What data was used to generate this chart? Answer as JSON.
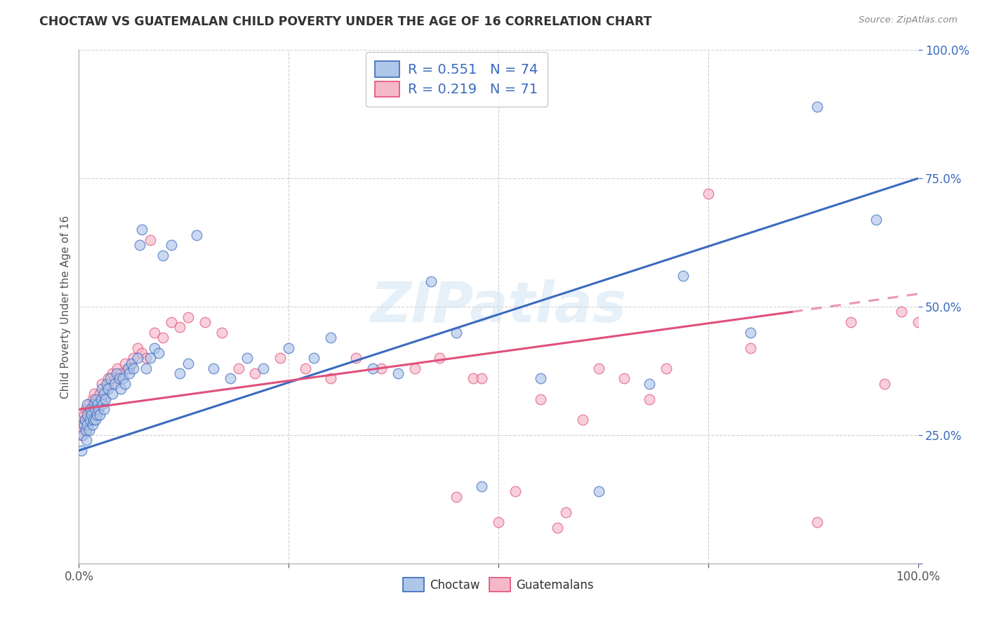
{
  "title": "CHOCTAW VS GUATEMALAN CHILD POVERTY UNDER THE AGE OF 16 CORRELATION CHART",
  "source": "Source: ZipAtlas.com",
  "ylabel": "Child Poverty Under the Age of 16",
  "choctaw_R": 0.551,
  "choctaw_N": 74,
  "guatemalan_R": 0.219,
  "guatemalan_N": 71,
  "choctaw_color": "#aec6e8",
  "guatemalan_color": "#f5b8c8",
  "choctaw_line_color": "#3b6abf",
  "guatemalan_line_color": "#e0507a",
  "watermark": "ZIPatlas",
  "xlim": [
    0.0,
    1.0
  ],
  "ylim": [
    0.0,
    1.0
  ],
  "choctaw_x": [
    0.003,
    0.005,
    0.006,
    0.007,
    0.008,
    0.009,
    0.01,
    0.01,
    0.01,
    0.012,
    0.013,
    0.014,
    0.015,
    0.016,
    0.017,
    0.018,
    0.019,
    0.02,
    0.02,
    0.021,
    0.022,
    0.023,
    0.025,
    0.026,
    0.027,
    0.028,
    0.03,
    0.03,
    0.031,
    0.033,
    0.035,
    0.037,
    0.04,
    0.042,
    0.045,
    0.048,
    0.05,
    0.052,
    0.055,
    0.058,
    0.06,
    0.062,
    0.065,
    0.07,
    0.072,
    0.075,
    0.08,
    0.085,
    0.09,
    0.095,
    0.1,
    0.11,
    0.12,
    0.13,
    0.14,
    0.16,
    0.18,
    0.2,
    0.22,
    0.25,
    0.28,
    0.3,
    0.35,
    0.38,
    0.42,
    0.45,
    0.48,
    0.55,
    0.62,
    0.68,
    0.72,
    0.8,
    0.88,
    0.95
  ],
  "choctaw_y": [
    0.22,
    0.25,
    0.27,
    0.28,
    0.26,
    0.24,
    0.27,
    0.29,
    0.31,
    0.26,
    0.28,
    0.3,
    0.29,
    0.27,
    0.28,
    0.31,
    0.3,
    0.28,
    0.32,
    0.29,
    0.31,
    0.3,
    0.29,
    0.32,
    0.34,
    0.31,
    0.3,
    0.33,
    0.32,
    0.35,
    0.34,
    0.36,
    0.33,
    0.35,
    0.37,
    0.36,
    0.34,
    0.36,
    0.35,
    0.38,
    0.37,
    0.39,
    0.38,
    0.4,
    0.62,
    0.65,
    0.38,
    0.4,
    0.42,
    0.41,
    0.6,
    0.62,
    0.37,
    0.39,
    0.64,
    0.38,
    0.36,
    0.4,
    0.38,
    0.42,
    0.4,
    0.44,
    0.38,
    0.37,
    0.55,
    0.45,
    0.15,
    0.36,
    0.14,
    0.35,
    0.56,
    0.45,
    0.89,
    0.67
  ],
  "guatemalan_x": [
    0.003,
    0.005,
    0.006,
    0.007,
    0.008,
    0.009,
    0.01,
    0.011,
    0.012,
    0.013,
    0.015,
    0.016,
    0.017,
    0.018,
    0.02,
    0.021,
    0.022,
    0.023,
    0.025,
    0.027,
    0.03,
    0.032,
    0.035,
    0.038,
    0.04,
    0.043,
    0.046,
    0.05,
    0.055,
    0.06,
    0.065,
    0.07,
    0.075,
    0.08,
    0.085,
    0.09,
    0.1,
    0.11,
    0.12,
    0.13,
    0.15,
    0.17,
    0.19,
    0.21,
    0.24,
    0.27,
    0.3,
    0.33,
    0.36,
    0.4,
    0.43,
    0.47,
    0.55,
    0.6,
    0.68,
    0.7,
    0.75,
    0.8,
    0.88,
    0.92,
    0.96,
    0.98,
    1.0,
    0.5,
    0.57,
    0.45,
    0.48,
    0.52,
    0.58,
    0.62,
    0.65
  ],
  "guatemalan_y": [
    0.25,
    0.27,
    0.29,
    0.28,
    0.3,
    0.26,
    0.28,
    0.3,
    0.31,
    0.29,
    0.3,
    0.32,
    0.31,
    0.33,
    0.29,
    0.31,
    0.3,
    0.32,
    0.33,
    0.35,
    0.32,
    0.34,
    0.36,
    0.35,
    0.37,
    0.36,
    0.38,
    0.37,
    0.39,
    0.38,
    0.4,
    0.42,
    0.41,
    0.4,
    0.63,
    0.45,
    0.44,
    0.47,
    0.46,
    0.48,
    0.47,
    0.45,
    0.38,
    0.37,
    0.4,
    0.38,
    0.36,
    0.4,
    0.38,
    0.38,
    0.4,
    0.36,
    0.32,
    0.28,
    0.32,
    0.38,
    0.72,
    0.42,
    0.08,
    0.47,
    0.35,
    0.49,
    0.47,
    0.08,
    0.07,
    0.13,
    0.36,
    0.14,
    0.1,
    0.38,
    0.36
  ],
  "choctaw_line_x0": 0.0,
  "choctaw_line_y0": 0.22,
  "choctaw_line_x1": 1.0,
  "choctaw_line_y1": 0.75,
  "guatemalan_line_x0": 0.0,
  "guatemalan_line_y0": 0.3,
  "guatemalan_line_x1": 0.85,
  "guatemalan_line_y1": 0.49,
  "guatemalan_line_dashed_x0": 0.85,
  "guatemalan_line_dashed_y0": 0.49,
  "guatemalan_line_dashed_x1": 1.0,
  "guatemalan_line_dashed_y1": 0.525
}
